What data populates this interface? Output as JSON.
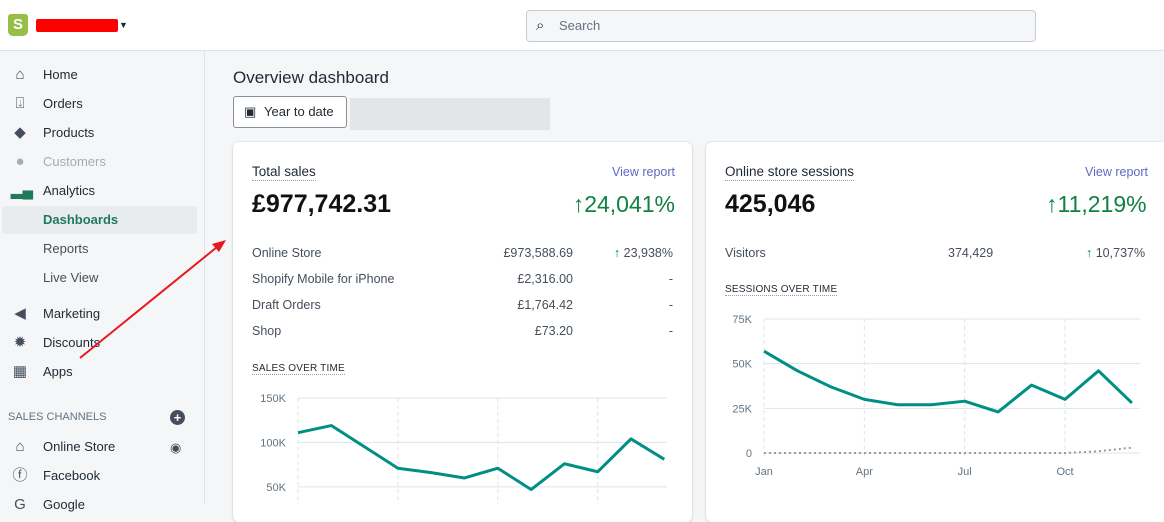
{
  "header": {
    "search_placeholder": "Search",
    "store_name_redacted": true
  },
  "sidebar": {
    "items": [
      {
        "label": "Home",
        "icon": "home-icon"
      },
      {
        "label": "Orders",
        "icon": "orders-icon"
      },
      {
        "label": "Products",
        "icon": "tag-icon"
      },
      {
        "label": "Customers",
        "icon": "person-icon"
      },
      {
        "label": "Analytics",
        "icon": "bar-chart-icon"
      },
      {
        "label": "Dashboards"
      },
      {
        "label": "Reports"
      },
      {
        "label": "Live View"
      },
      {
        "label": "Marketing",
        "icon": "megaphone-icon"
      },
      {
        "label": "Discounts",
        "icon": "discount-icon"
      },
      {
        "label": "Apps",
        "icon": "apps-icon"
      }
    ],
    "sales_channels_heading": "SALES CHANNELS",
    "channels": [
      {
        "label": "Online Store"
      },
      {
        "label": "Facebook"
      },
      {
        "label": "Google"
      }
    ]
  },
  "main": {
    "title": "Overview dashboard",
    "date_button": "Year to date"
  },
  "sales_card": {
    "title": "Total sales",
    "view_report": "View report",
    "total": "£977,742.31",
    "change": "24,041%",
    "rows": [
      {
        "label": "Online Store",
        "value": "£973,588.69",
        "change": "23,938%"
      },
      {
        "label": "Shopify Mobile for iPhone",
        "value": "£2,316.00",
        "change": "-"
      },
      {
        "label": "Draft Orders",
        "value": "£1,764.42",
        "change": "-"
      },
      {
        "label": "Shop",
        "value": "£73.20",
        "change": "-"
      }
    ],
    "chart_title": "SALES OVER TIME"
  },
  "sessions_card": {
    "title": "Online store sessions",
    "view_report": "View report",
    "total": "425,046",
    "change": "11,219%",
    "visitors_label": "Visitors",
    "visitors_value": "374,429",
    "visitors_change": "10,737%",
    "chart_title": "SESSIONS OVER TIME"
  },
  "colors": {
    "accent": "#008f84",
    "positive": "#108043",
    "link": "#5c6ac4"
  },
  "chart_data": [
    {
      "type": "line",
      "title": "SALES OVER TIME",
      "yticks": [
        "150K",
        "100K",
        "50K"
      ],
      "ylim": [
        0,
        150000
      ],
      "series": [
        {
          "name": "current",
          "values": [
            111000,
            119000,
            95000,
            71000,
            66000,
            60000,
            71000,
            47000,
            76000,
            67000,
            104000,
            81000
          ]
        }
      ]
    },
    {
      "type": "line",
      "title": "SESSIONS OVER TIME",
      "yticks": [
        "75K",
        "50K",
        "25K",
        "0"
      ],
      "ylim": [
        0,
        75000
      ],
      "categories": [
        "Jan",
        "Feb",
        "Mar",
        "Apr",
        "May",
        "Jun",
        "Jul",
        "Aug",
        "Sep",
        "Oct",
        "Nov",
        "Dec"
      ],
      "xticks": [
        "Jan",
        "Apr",
        "Jul",
        "Oct"
      ],
      "series": [
        {
          "name": "current",
          "values": [
            57000,
            46000,
            37000,
            30000,
            27000,
            27000,
            29000,
            23000,
            38000,
            30000,
            46000,
            28000
          ]
        },
        {
          "name": "previous",
          "values": [
            0,
            0,
            0,
            0,
            0,
            0,
            0,
            0,
            0,
            0,
            1000,
            3000
          ]
        }
      ]
    }
  ]
}
